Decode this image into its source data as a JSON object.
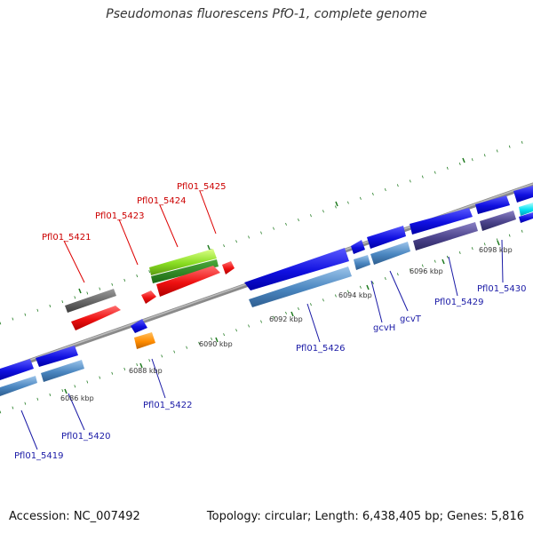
{
  "title": "Pseudomonas fluorescens PfO-1, complete genome",
  "footer": {
    "accession": "Accession: NC_007492",
    "summary": "Topology: circular; Length: 6,438,405 bp; Genes: 5,816"
  },
  "colors": {
    "backbone": "#8a8a8a",
    "tick": "#1f7a1f",
    "forward_label": "#cc0000",
    "reverse_label": "#1a1aa6"
  },
  "kbp_labels": [
    "6086 kbp",
    "6088 kbp",
    "6090 kbp",
    "6092 kbp",
    "6094 kbp",
    "6096 kbp",
    "6098 kbp"
  ],
  "forward_labels": [
    "Pfl01_5421",
    "Pfl01_5423",
    "Pfl01_5424",
    "Pfl01_5425"
  ],
  "reverse_labels": [
    "Pfl01_5419",
    "Pfl01_5420",
    "Pfl01_5422",
    "Pfl01_5426",
    "gcvH",
    "gcvT",
    "Pfl01_5429",
    "Pfl01_5430"
  ]
}
